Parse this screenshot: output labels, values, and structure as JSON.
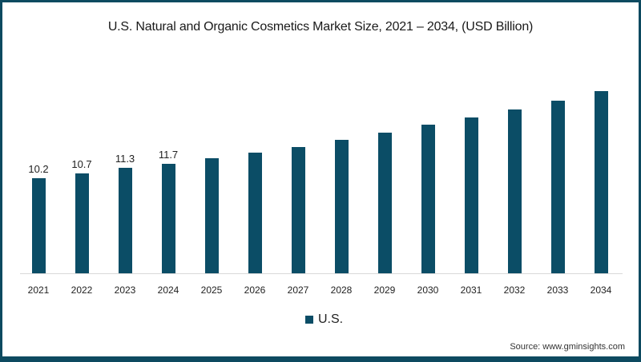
{
  "title": "U.S. Natural and Organic Cosmetics Market Size, 2021 – 2034, (USD Billion)",
  "legend": {
    "label": "U.S.",
    "color": "#0b4d66"
  },
  "source": "Source: www.gminsights.com",
  "chart_data": {
    "type": "bar",
    "title": "U.S. Natural and Organic Cosmetics Market Size, 2021 – 2034, (USD Billion)",
    "xlabel": "",
    "ylabel": "USD Billion",
    "categories": [
      "2021",
      "2022",
      "2023",
      "2024",
      "2025",
      "2026",
      "2027",
      "2028",
      "2029",
      "2030",
      "2031",
      "2032",
      "2033",
      "2034"
    ],
    "series": [
      {
        "name": "U.S.",
        "color": "#0b4d66",
        "values": [
          10.2,
          10.7,
          11.3,
          11.7,
          12.3,
          12.9,
          13.5,
          14.3,
          15.1,
          15.9,
          16.7,
          17.6,
          18.5,
          19.5
        ]
      }
    ],
    "data_labels": {
      "2021": "10.2",
      "2022": "10.7",
      "2023": "11.3",
      "2024": "11.7"
    },
    "legend_position": "bottom",
    "grid": false,
    "ylim": [
      0,
      20
    ]
  }
}
